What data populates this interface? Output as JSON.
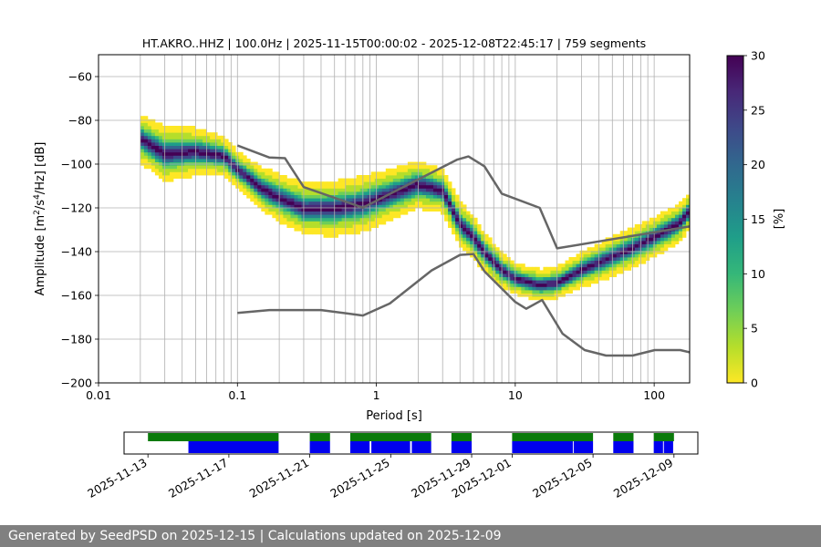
{
  "chart_data": [
    {
      "type": "heatmap",
      "title": "HT.AKRO..HHZ | 100.0Hz | 2025-11-15T00:00:02 - 2025-12-08T22:45:17 | 759 segments",
      "xlabel": "Period [s]",
      "ylabel_main": "Amplitude [m",
      "ylabel_sup1": "2",
      "ylabel_mid": "/s",
      "ylabel_sup2": "4",
      "ylabel_end": "/Hz] [dB]",
      "x_scale": "log",
      "xlim": [
        0.01,
        180
      ],
      "ylim": [
        -200,
        -50
      ],
      "xticks": [
        {
          "value": 0.01,
          "label": "0.01"
        },
        {
          "value": 0.1,
          "label": "0.1"
        },
        {
          "value": 1,
          "label": "1"
        },
        {
          "value": 10,
          "label": "10"
        },
        {
          "value": 100,
          "label": "100"
        }
      ],
      "yticks": [
        {
          "value": -60,
          "label": "−60"
        },
        {
          "value": -80,
          "label": "−80"
        },
        {
          "value": -100,
          "label": "−100"
        },
        {
          "value": -120,
          "label": "−120"
        },
        {
          "value": -140,
          "label": "−140"
        },
        {
          "value": -160,
          "label": "−160"
        },
        {
          "value": -180,
          "label": "−180"
        },
        {
          "value": -200,
          "label": "−200"
        }
      ],
      "grid": "vertical",
      "psd_mode": {
        "period": [
          0.02,
          0.03,
          0.05,
          0.08,
          0.1,
          0.15,
          0.2,
          0.3,
          0.5,
          0.8,
          1.2,
          2,
          3,
          4,
          5,
          6,
          8,
          10,
          15,
          20,
          30,
          50,
          70,
          100,
          150,
          180
        ],
        "db": [
          -89,
          -96,
          -95,
          -97,
          -103,
          -112,
          -116,
          -121,
          -121,
          -119,
          -115,
          -110,
          -113,
          -128,
          -134,
          -141,
          -149,
          -153,
          -156,
          -155,
          -149,
          -143,
          -139,
          -134,
          -128,
          -122
        ]
      },
      "band_halfwidth_db": [
        12,
        14,
        12,
        10,
        9,
        11,
        12,
        13,
        14,
        14,
        13,
        12,
        11,
        11,
        11,
        10,
        9,
        8,
        8,
        8,
        9,
        10,
        10,
        10,
        10,
        9
      ],
      "reference_curves": [
        {
          "period": [
            0.1,
            0.17,
            0.22,
            0.3,
            0.8,
            3.8,
            4.6,
            6,
            8,
            15,
            20,
            180
          ],
          "db": [
            -91.5,
            -97,
            -97.3,
            -110.5,
            -119.9,
            -98,
            -96.5,
            -101,
            -113.5,
            -120,
            -138.5,
            -128.5
          ]
        },
        {
          "period": [
            0.1,
            0.17,
            0.4,
            0.8,
            1.25,
            2.5,
            4,
            5,
            6,
            10,
            12,
            15.6,
            21.9,
            31.6,
            45,
            70,
            101,
            154,
            180
          ],
          "db": [
            -168,
            -166.7,
            -166.7,
            -169.2,
            -163.7,
            -148.6,
            -141.5,
            -141.1,
            -149,
            -163,
            -166.1,
            -162.1,
            -177.5,
            -185,
            -187.5,
            -187.5,
            -185,
            -185,
            -186
          ]
        }
      ],
      "colorbar": {
        "label": "[%]",
        "min": 0,
        "max": 30,
        "ticks": [
          {
            "value": 0,
            "label": "0"
          },
          {
            "value": 5,
            "label": "5"
          },
          {
            "value": 10,
            "label": "10"
          },
          {
            "value": 15,
            "label": "15"
          },
          {
            "value": 20,
            "label": "20"
          },
          {
            "value": 25,
            "label": "25"
          },
          {
            "value": 30,
            "label": "30"
          }
        ]
      },
      "colormap": [
        "#fde725",
        "#b5de2b",
        "#6ece58",
        "#35b779",
        "#1f9e89",
        "#26828e",
        "#31688e",
        "#3e4989",
        "#482878",
        "#440154"
      ]
    },
    {
      "type": "timeline",
      "xlim": [
        "2025-11-12",
        "2025-12-10"
      ],
      "ticks": [
        {
          "date": "2025-11-13",
          "label": "2025-11-13"
        },
        {
          "date": "2025-11-17",
          "label": "2025-11-17"
        },
        {
          "date": "2025-11-21",
          "label": "2025-11-21"
        },
        {
          "date": "2025-11-25",
          "label": "2025-11-25"
        },
        {
          "date": "2025-11-29",
          "label": "2025-11-29"
        },
        {
          "date": "2025-12-01",
          "label": "2025-12-01"
        },
        {
          "date": "2025-12-05",
          "label": "2025-12-05"
        },
        {
          "date": "2025-12-09",
          "label": "2025-12-09"
        }
      ],
      "colors": {
        "data_available": "#0a7a0a",
        "psd_computed": "#0000ee"
      },
      "data_available": [
        [
          "2025-11-13T00:00",
          "2025-11-19T11:00"
        ],
        [
          "2025-11-21T00:00",
          "2025-11-22T00:00"
        ],
        [
          "2025-11-23T00:00",
          "2025-11-27T00:00"
        ],
        [
          "2025-11-28T00:00",
          "2025-11-29T00:00"
        ],
        [
          "2025-12-01T00:00",
          "2025-12-05T00:00"
        ],
        [
          "2025-12-06T00:00",
          "2025-12-07T00:00"
        ],
        [
          "2025-12-08T00:00",
          "2025-12-09T00:00"
        ]
      ],
      "psd_computed": [
        [
          "2025-11-15T00:00",
          "2025-11-19T11:00"
        ],
        [
          "2025-11-21T00:00",
          "2025-11-22T00:00"
        ],
        [
          "2025-11-23T00:00",
          "2025-11-23T23:00"
        ],
        [
          "2025-11-24T01:00",
          "2025-11-25T23:00"
        ],
        [
          "2025-11-26T01:00",
          "2025-11-27T00:00"
        ],
        [
          "2025-11-28T00:00",
          "2025-11-29T00:00"
        ],
        [
          "2025-12-01T00:00",
          "2025-12-04T00:00"
        ],
        [
          "2025-12-04T01:00",
          "2025-12-05T00:00"
        ],
        [
          "2025-12-06T00:00",
          "2025-12-07T00:00"
        ],
        [
          "2025-12-08T00:00",
          "2025-12-08T11:00"
        ],
        [
          "2025-12-08T12:00",
          "2025-12-08T23:00"
        ]
      ]
    }
  ],
  "footer": {
    "text": "Generated by SeedPSD on 2025-12-15 | Calculations updated on 2025-12-09"
  }
}
